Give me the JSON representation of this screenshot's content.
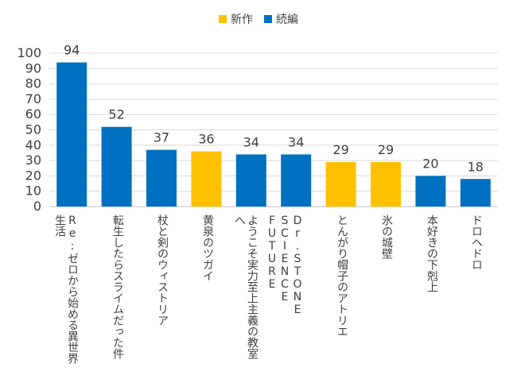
{
  "chart_data": {
    "type": "bar",
    "title": "",
    "xlabel": "",
    "ylabel": "",
    "ylim": [
      0,
      100
    ],
    "yticks": [
      0,
      10,
      20,
      30,
      40,
      50,
      60,
      70,
      80,
      90,
      100
    ],
    "grid": true,
    "legend_position": "top-center",
    "legend": [
      {
        "name": "新作",
        "color": "#FFC000"
      },
      {
        "name": "続編",
        "color": "#0070C0"
      }
    ],
    "categories": [
      "Re:ゼロから始める異世界生活",
      "転生したらスライムだった件",
      "杖と剣のウィストリア",
      "黄泉のツガイ",
      "ようこそ実力至上主義の教室へ",
      "Dr.STONE SCIENCE FUTURE",
      "とんがり帽子のアトリエ",
      "氷の城壁",
      "本好きの下剋上",
      "ドロヘドロ"
    ],
    "values": [
      94,
      52,
      37,
      36,
      34,
      34,
      29,
      29,
      20,
      18
    ],
    "bar_series": [
      "続編",
      "続編",
      "続編",
      "新作",
      "続編",
      "続編",
      "新作",
      "新作",
      "続編",
      "続編"
    ]
  }
}
